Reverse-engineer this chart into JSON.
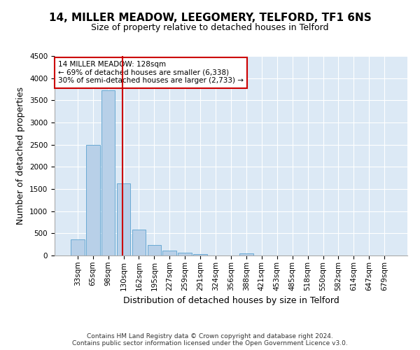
{
  "title_line1": "14, MILLER MEADOW, LEEGOMERY, TELFORD, TF1 6NS",
  "title_line2": "Size of property relative to detached houses in Telford",
  "xlabel": "Distribution of detached houses by size in Telford",
  "ylabel": "Number of detached properties",
  "categories": [
    "33sqm",
    "65sqm",
    "98sqm",
    "130sqm",
    "162sqm",
    "195sqm",
    "227sqm",
    "259sqm",
    "291sqm",
    "324sqm",
    "356sqm",
    "388sqm",
    "421sqm",
    "453sqm",
    "485sqm",
    "518sqm",
    "550sqm",
    "582sqm",
    "614sqm",
    "647sqm",
    "679sqm"
  ],
  "values": [
    370,
    2500,
    3720,
    1630,
    590,
    230,
    105,
    60,
    35,
    0,
    0,
    50,
    0,
    0,
    0,
    0,
    0,
    0,
    0,
    0,
    0
  ],
  "bar_color": "#b8d0e8",
  "bar_edge_color": "#6aaad4",
  "vline_color": "#cc0000",
  "annotation_text": "14 MILLER MEADOW: 128sqm\n← 69% of detached houses are smaller (6,338)\n30% of semi-detached houses are larger (2,733) →",
  "annotation_box_color": "#cc0000",
  "annotation_text_color": "#000000",
  "ylim": [
    0,
    4500
  ],
  "yticks": [
    0,
    500,
    1000,
    1500,
    2000,
    2500,
    3000,
    3500,
    4000,
    4500
  ],
  "background_color": "#ffffff",
  "plot_bg_color": "#dce9f5",
  "grid_color": "#ffffff",
  "footer_line1": "Contains HM Land Registry data © Crown copyright and database right 2024.",
  "footer_line2": "Contains public sector information licensed under the Open Government Licence v3.0.",
  "title1_fontsize": 11,
  "title2_fontsize": 9,
  "tick_fontsize": 7.5,
  "ylabel_fontsize": 9,
  "xlabel_fontsize": 9,
  "footer_fontsize": 6.5
}
